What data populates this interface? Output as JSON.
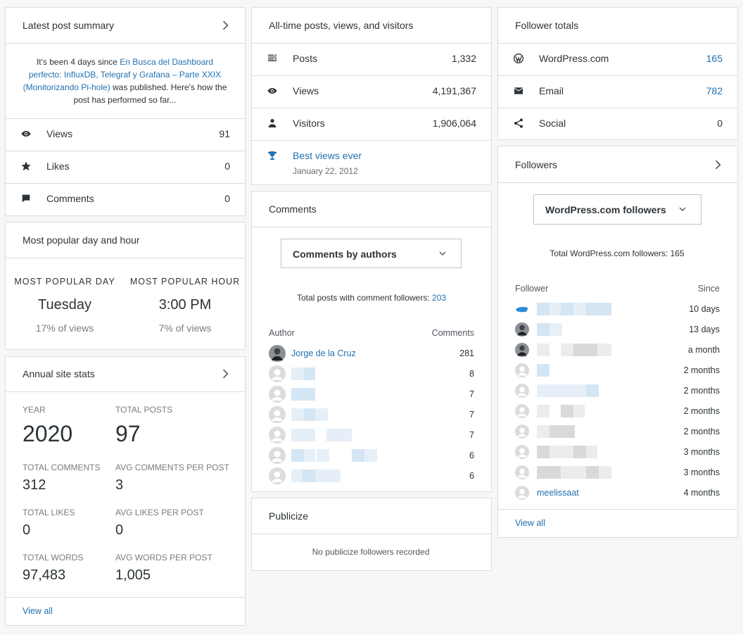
{
  "latest_post_summary": {
    "title": "Latest post summary",
    "intro": "It's been 4 days since ",
    "post_link": "En Busca del Dashboard perfecto: InfluxDB, Telegraf y Grafana – Parte XXIX (Monitorizando Pi-hole)",
    "outro": " was published. Here's how the post has performed so far...",
    "rows": [
      {
        "label": "Views",
        "value": "91"
      },
      {
        "label": "Likes",
        "value": "0"
      },
      {
        "label": "Comments",
        "value": "0"
      }
    ]
  },
  "most_popular": {
    "title": "Most popular day and hour",
    "day_label": "MOST POPULAR DAY",
    "day": "Tuesday",
    "day_share": "17% of views",
    "hour_label": "MOST POPULAR HOUR",
    "hour": "3:00 PM",
    "hour_share": "7% of views"
  },
  "annual_site_stats": {
    "title": "Annual site stats",
    "stats": [
      {
        "label": "YEAR",
        "value": "2020"
      },
      {
        "label": "TOTAL POSTS",
        "value": "97"
      },
      {
        "label": "TOTAL COMMENTS",
        "value": "312"
      },
      {
        "label": "AVG COMMENTS PER POST",
        "value": "3"
      },
      {
        "label": "TOTAL LIKES",
        "value": "0"
      },
      {
        "label": "AVG LIKES PER POST",
        "value": "0"
      },
      {
        "label": "TOTAL WORDS",
        "value": "97,483"
      },
      {
        "label": "AVG WORDS PER POST",
        "value": "1,005"
      }
    ],
    "view_all": "View all"
  },
  "all_time": {
    "title": "All-time posts, views, and visitors",
    "rows": [
      {
        "label": "Posts",
        "value": "1,332"
      },
      {
        "label": "Views",
        "value": "4,191,367"
      },
      {
        "label": "Visitors",
        "value": "1,906,064"
      }
    ],
    "best_label": "Best views ever",
    "best_date": "January 22, 2012"
  },
  "comments": {
    "title": "Comments",
    "dropdown": "Comments by authors",
    "total_label": "Total posts with comment followers: ",
    "total_value": "203",
    "author_header": "Author",
    "comments_header": "Comments",
    "rows": [
      {
        "name": "Jorge de la Cruz",
        "comments": "281"
      },
      {
        "comments": "8"
      },
      {
        "comments": "7"
      },
      {
        "comments": "7"
      },
      {
        "comments": "7"
      },
      {
        "comments": "6"
      },
      {
        "comments": "6"
      }
    ]
  },
  "publicize": {
    "title": "Publicize",
    "empty": "No publicize followers recorded"
  },
  "follower_totals": {
    "title": "Follower totals",
    "rows": [
      {
        "label": "WordPress.com",
        "value": "165"
      },
      {
        "label": "Email",
        "value": "782"
      },
      {
        "label": "Social",
        "value": "0"
      }
    ]
  },
  "followers": {
    "title": "Followers",
    "dropdown": "WordPress.com followers",
    "total": "Total WordPress.com followers: 165",
    "follower_header": "Follower",
    "since_header": "Since",
    "rows": [
      {
        "since": "10 days"
      },
      {
        "since": "13 days"
      },
      {
        "since": "a month"
      },
      {
        "since": "2 months"
      },
      {
        "since": "2 months"
      },
      {
        "since": "2 months"
      },
      {
        "since": "2 months"
      },
      {
        "since": "3 months"
      },
      {
        "since": "3 months"
      },
      {
        "name": "meelissaat",
        "since": "4 months"
      }
    ],
    "view_all": "View all"
  }
}
